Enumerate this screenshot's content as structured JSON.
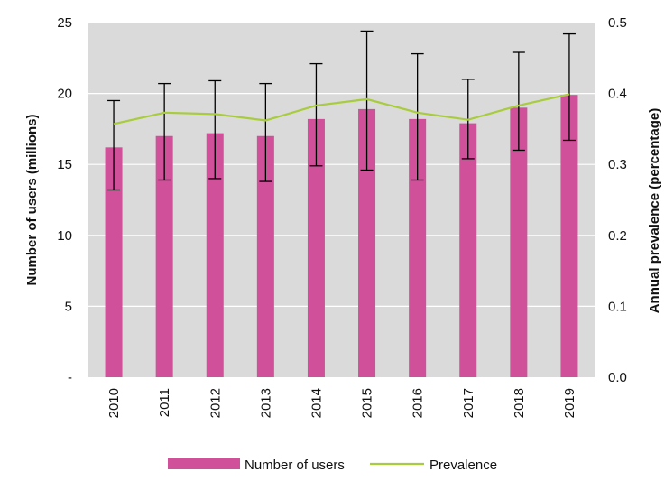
{
  "chart_data": {
    "type": "bar",
    "categories": [
      "2010",
      "2011",
      "2012",
      "2013",
      "2014",
      "2015",
      "2016",
      "2017",
      "2018",
      "2019"
    ],
    "series": [
      {
        "name": "Number of users",
        "type": "bar",
        "axis": "left",
        "values": [
          16.2,
          17.0,
          17.2,
          17.0,
          18.2,
          18.9,
          18.2,
          17.9,
          19.0,
          19.9
        ],
        "error_low": [
          13.2,
          13.9,
          14.0,
          13.8,
          14.9,
          14.6,
          13.9,
          15.4,
          16.0,
          16.7
        ],
        "error_high": [
          19.5,
          20.7,
          20.9,
          20.7,
          22.1,
          24.4,
          22.8,
          21.0,
          22.9,
          24.2
        ]
      },
      {
        "name": "Prevalence",
        "type": "line",
        "axis": "right",
        "values": [
          0.357,
          0.373,
          0.371,
          0.362,
          0.383,
          0.392,
          0.373,
          0.363,
          0.383,
          0.399
        ]
      }
    ],
    "y_left": {
      "label": "Number of users (millions)",
      "ylim": [
        0,
        25
      ],
      "ticks": [
        0,
        5,
        10,
        15,
        20,
        25
      ],
      "tick_labels": [
        "-",
        "5",
        "10",
        "15",
        "20",
        "25"
      ]
    },
    "y_right": {
      "label": "Annual prevalence (percentage)",
      "ylim": [
        0,
        0.5
      ],
      "ticks": [
        0,
        0.1,
        0.2,
        0.3,
        0.4,
        0.5
      ],
      "tick_labels": [
        "0.0",
        "0.1",
        "0.2",
        "0.3",
        "0.4",
        "0.5"
      ]
    },
    "grid": true,
    "legend_position": "bottom",
    "colors": {
      "bar": "#d0509a",
      "line": "#a8cc3c",
      "plot_background": "#dadada",
      "grid": "#ffffff",
      "error_bar": "#000000"
    }
  }
}
